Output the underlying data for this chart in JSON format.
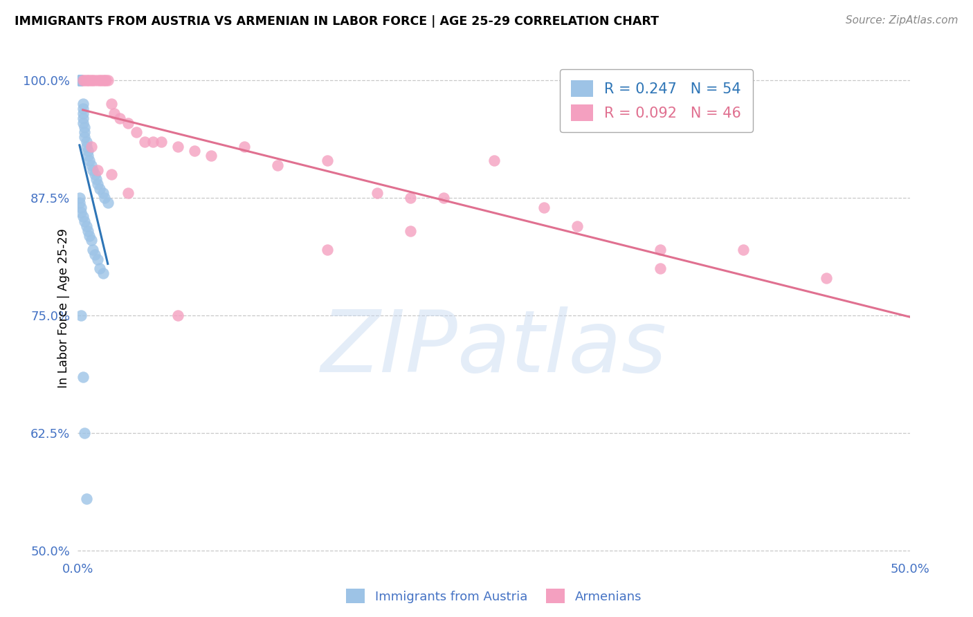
{
  "title": "IMMIGRANTS FROM AUSTRIA VS ARMENIAN IN LABOR FORCE | AGE 25-29 CORRELATION CHART",
  "source": "Source: ZipAtlas.com",
  "ylabel": "In Labor Force | Age 25-29",
  "xlim_low": 0.0,
  "xlim_high": 0.5,
  "ylim_low": 0.495,
  "ylim_high": 1.02,
  "ytick_vals": [
    0.5,
    0.625,
    0.75,
    0.875,
    1.0
  ],
  "ytick_labels": [
    "50.0%",
    "62.5%",
    "75.0%",
    "87.5%",
    "100.0%"
  ],
  "xtick_vals": [
    0.0,
    0.05,
    0.1,
    0.15,
    0.2,
    0.25,
    0.3,
    0.35,
    0.4,
    0.45,
    0.5
  ],
  "xtick_labels": [
    "0.0%",
    "",
    "",
    "",
    "",
    "",
    "",
    "",
    "",
    "",
    "50.0%"
  ],
  "austria_R": 0.247,
  "austria_N": 54,
  "armenian_R": 0.092,
  "armenian_N": 46,
  "austria_scatter_color": "#9dc3e6",
  "armenian_scatter_color": "#f4a0c0",
  "austria_line_color": "#2e75b6",
  "armenian_line_color": "#e07090",
  "axis_label_color": "#4472c4",
  "grid_color": "#c8c8c8",
  "austria_x": [
    0.001,
    0.001,
    0.001,
    0.001,
    0.001,
    0.001,
    0.001,
    0.001,
    0.002,
    0.002,
    0.002,
    0.002,
    0.002,
    0.003,
    0.003,
    0.003,
    0.003,
    0.003,
    0.004,
    0.004,
    0.004,
    0.005,
    0.005,
    0.006,
    0.006,
    0.007,
    0.008,
    0.009,
    0.01,
    0.011,
    0.012,
    0.013,
    0.015,
    0.016,
    0.018,
    0.001,
    0.001,
    0.002,
    0.002,
    0.003,
    0.004,
    0.005,
    0.006,
    0.007,
    0.008,
    0.009,
    0.01,
    0.012,
    0.013,
    0.015,
    0.002,
    0.003,
    0.004,
    0.005
  ],
  "austria_y": [
    1.0,
    1.0,
    1.0,
    1.0,
    1.0,
    1.0,
    1.0,
    1.0,
    1.0,
    1.0,
    1.0,
    1.0,
    1.0,
    0.975,
    0.97,
    0.965,
    0.96,
    0.955,
    0.95,
    0.945,
    0.94,
    0.935,
    0.93,
    0.925,
    0.92,
    0.915,
    0.91,
    0.905,
    0.9,
    0.895,
    0.89,
    0.885,
    0.88,
    0.875,
    0.87,
    0.875,
    0.87,
    0.865,
    0.86,
    0.855,
    0.85,
    0.845,
    0.84,
    0.835,
    0.83,
    0.82,
    0.815,
    0.81,
    0.8,
    0.795,
    0.75,
    0.685,
    0.625,
    0.555
  ],
  "armenian_x": [
    0.003,
    0.004,
    0.005,
    0.006,
    0.007,
    0.008,
    0.009,
    0.01,
    0.012,
    0.013,
    0.014,
    0.015,
    0.016,
    0.017,
    0.018,
    0.02,
    0.022,
    0.025,
    0.03,
    0.035,
    0.04,
    0.045,
    0.05,
    0.06,
    0.07,
    0.08,
    0.1,
    0.12,
    0.15,
    0.18,
    0.2,
    0.22,
    0.25,
    0.28,
    0.3,
    0.35,
    0.4,
    0.45,
    0.008,
    0.012,
    0.02,
    0.03,
    0.06,
    0.15,
    0.2,
    0.35
  ],
  "armenian_y": [
    1.0,
    1.0,
    1.0,
    1.0,
    1.0,
    1.0,
    1.0,
    1.0,
    1.0,
    1.0,
    1.0,
    1.0,
    1.0,
    1.0,
    1.0,
    0.975,
    0.965,
    0.96,
    0.955,
    0.945,
    0.935,
    0.935,
    0.935,
    0.93,
    0.925,
    0.92,
    0.93,
    0.91,
    0.915,
    0.88,
    0.875,
    0.875,
    0.915,
    0.865,
    0.845,
    0.82,
    0.82,
    0.79,
    0.93,
    0.905,
    0.9,
    0.88,
    0.75,
    0.82,
    0.84,
    0.8
  ]
}
